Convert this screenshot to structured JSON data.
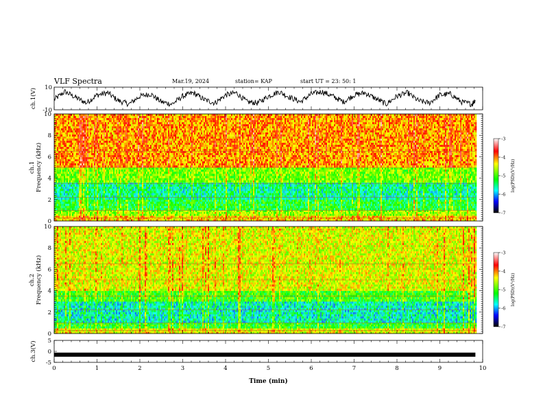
{
  "header": {
    "title": "VLF Spectra",
    "date": "Mar.19, 2024",
    "station": "station= KAP",
    "start": "start  UT  =   23: 50: 1"
  },
  "colorbar": {
    "label": "log(PSD)(V²/Hz)",
    "ticks": [
      -3,
      -4,
      -5,
      -6,
      -7
    ],
    "colors": [
      "#ffffff",
      "#ff0000",
      "#ffff00",
      "#00ff00",
      "#00ffff",
      "#0000ff",
      "#000000"
    ]
  },
  "chart_data": [
    {
      "type": "line",
      "id": "ch1-waveform",
      "ylabel": "ch.1(V)",
      "ylim": [
        -10,
        10
      ],
      "yticks": [
        10,
        -10
      ],
      "xlim": [
        0,
        10
      ],
      "x": [
        0,
        0.25,
        0.5,
        0.75,
        1.0,
        1.25,
        1.5,
        1.75,
        2.0,
        2.25,
        2.5,
        2.75,
        3.0,
        3.25,
        3.5,
        3.75,
        4.0,
        4.25,
        4.5,
        4.75,
        5.0,
        5.25,
        5.5,
        5.75,
        6.0,
        6.25,
        6.5,
        6.75,
        7.0,
        7.25,
        7.5,
        7.75,
        8.0,
        8.25,
        8.5,
        8.75,
        9.0,
        9.25,
        9.5,
        9.75,
        9.83
      ],
      "y": [
        -1,
        6,
        1,
        -4,
        3,
        5,
        -2,
        -5,
        2,
        4,
        -3,
        -5,
        2,
        5,
        -1,
        -4,
        3,
        5,
        -3,
        -4,
        2,
        6,
        1,
        -3,
        4,
        6,
        2,
        -3,
        3,
        5,
        0,
        -5,
        2,
        5,
        -2,
        -4,
        3,
        4,
        -3,
        -5,
        -1
      ]
    },
    {
      "type": "heatmap",
      "id": "ch1-spectrogram",
      "ylabel": "ch.1\nFrequency (kHz)",
      "ylim": [
        0,
        10
      ],
      "yticks": [
        0,
        2,
        4,
        6,
        8,
        10
      ],
      "xlim": [
        0,
        10
      ],
      "data_end_min": 9.83,
      "bands": [
        {
          "fmin": 0,
          "fmax": 0.5,
          "level": -4.3
        },
        {
          "fmin": 0.5,
          "fmax": 1.0,
          "level": -4.8
        },
        {
          "fmin": 1.0,
          "fmax": 2.0,
          "level": -5.3
        },
        {
          "fmin": 2.0,
          "fmax": 3.6,
          "level": -5.6
        },
        {
          "fmin": 3.6,
          "fmax": 5.0,
          "level": -4.9
        },
        {
          "fmin": 5.0,
          "fmax": 10.0,
          "level": -4.1
        }
      ]
    },
    {
      "type": "heatmap",
      "id": "ch2-spectrogram",
      "ylabel": "ch.2\nFrequency (kHz)",
      "ylim": [
        0,
        10
      ],
      "yticks": [
        0,
        2,
        4,
        6,
        8,
        10
      ],
      "xlim": [
        0,
        10
      ],
      "data_end_min": 9.83,
      "bands": [
        {
          "fmin": 0,
          "fmax": 0.5,
          "level": -4.5
        },
        {
          "fmin": 0.5,
          "fmax": 1.0,
          "level": -5.2
        },
        {
          "fmin": 1.0,
          "fmax": 3.0,
          "level": -5.7
        },
        {
          "fmin": 3.0,
          "fmax": 4.0,
          "level": -5.1
        },
        {
          "fmin": 4.0,
          "fmax": 10.0,
          "level": -4.5
        }
      ]
    },
    {
      "type": "line",
      "id": "ch3-waveform",
      "ylabel": "ch.3(V)",
      "ylim": [
        -5,
        5
      ],
      "yticks": [
        5,
        0,
        -5
      ],
      "xlim": [
        0,
        10
      ],
      "xlabel": "Time  (min)",
      "xticks": [
        0,
        1,
        2,
        3,
        4,
        5,
        6,
        7,
        8,
        9,
        10
      ],
      "x": [
        0,
        9.83
      ],
      "y": [
        -1.5,
        -1.5
      ]
    }
  ]
}
